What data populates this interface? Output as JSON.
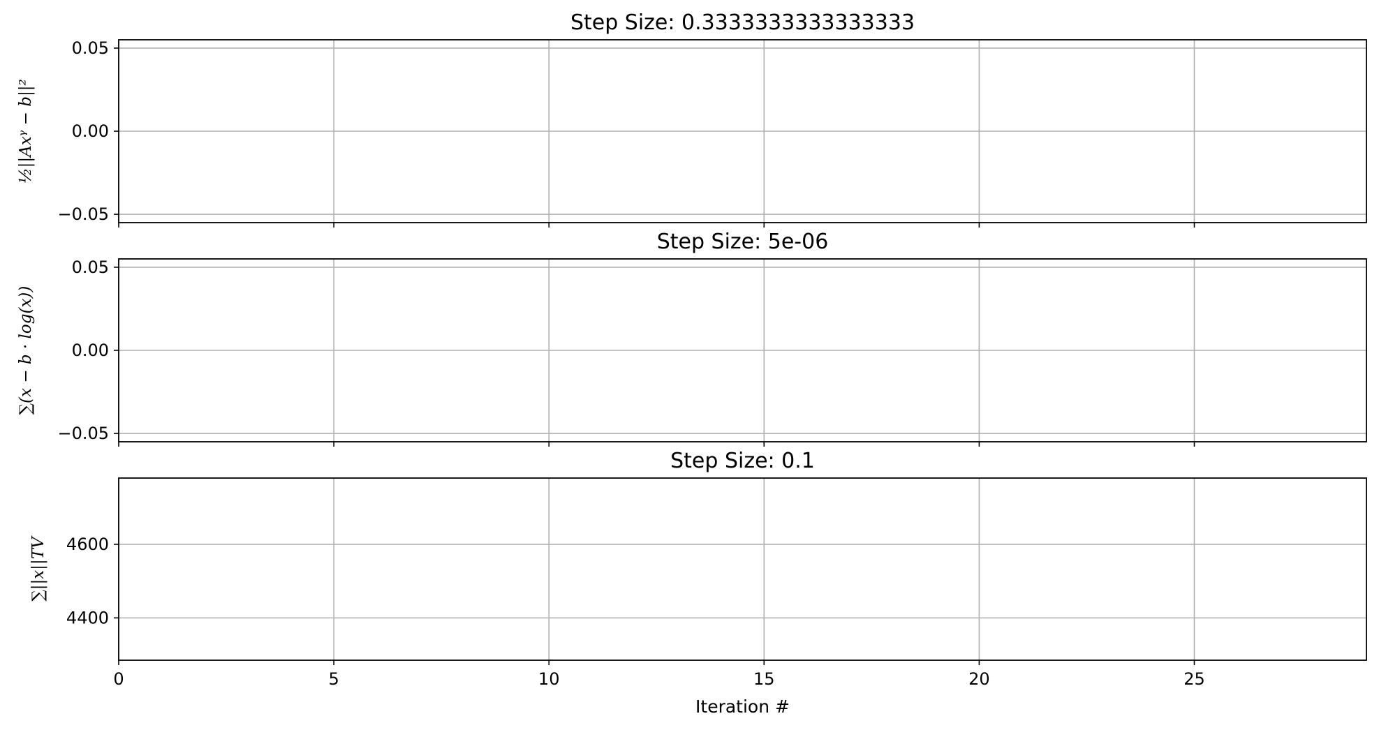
{
  "chart_data": [
    {
      "type": "line",
      "title": "Step Size: 0.3333333333333333",
      "ylabel": "½||Axᵞ − b||²",
      "xlabel": "",
      "xlim": [
        0,
        29
      ],
      "ylim": [
        -0.055,
        0.055
      ],
      "xticks": [
        0,
        5,
        10,
        15,
        20,
        25
      ],
      "xtick_labels_visible": false,
      "yticks": [
        -0.05,
        0.0,
        0.05
      ],
      "ytick_labels": [
        "−0.05",
        "0.00",
        "0.05"
      ],
      "grid": true,
      "series": []
    },
    {
      "type": "line",
      "title": "Step Size: 5e-06",
      "ylabel": "∑(x − b · log(x))",
      "xlabel": "",
      "xlim": [
        0,
        29
      ],
      "ylim": [
        -0.055,
        0.055
      ],
      "xticks": [
        0,
        5,
        10,
        15,
        20,
        25
      ],
      "xtick_labels_visible": false,
      "yticks": [
        -0.05,
        0.0,
        0.05
      ],
      "ytick_labels": [
        "−0.05",
        "0.00",
        "0.05"
      ],
      "grid": true,
      "series": []
    },
    {
      "type": "line",
      "title": "Step Size: 0.1",
      "ylabel": "∑||x||TV",
      "xlabel": "Iteration #",
      "xlim": [
        0,
        29
      ],
      "ylim": [
        4285,
        4780
      ],
      "xticks": [
        0,
        5,
        10,
        15,
        20,
        25
      ],
      "xtick_labels": [
        "0",
        "5",
        "10",
        "15",
        "20",
        "25"
      ],
      "xtick_labels_visible": true,
      "yticks": [
        4400,
        4600
      ],
      "ytick_labels": [
        "4400",
        "4600"
      ],
      "grid": true,
      "series": []
    }
  ],
  "colors": {
    "axes": "#000000",
    "grid": "#b0b0b0",
    "background": "#ffffff"
  }
}
